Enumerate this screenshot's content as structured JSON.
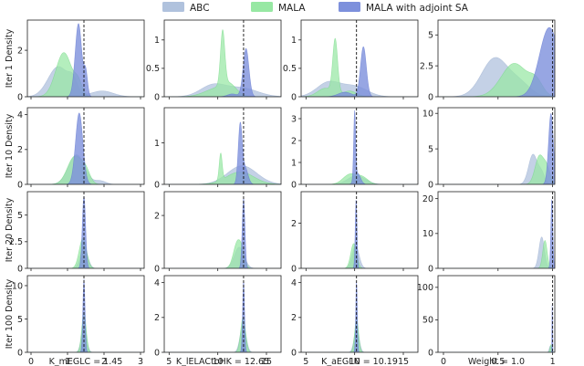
{
  "chart_data": {
    "type": "area",
    "description_scope": "grid of density plots",
    "legend": {
      "placement": "top-center",
      "entries": [
        {
          "name": "ABC",
          "color": "#b0c2dd"
        },
        {
          "name": "MALA",
          "color": "#97e8a3"
        },
        {
          "name": "MALA with adjoint SA",
          "color": "#7d90dc"
        }
      ]
    },
    "row_labels": [
      "Iter 1 Density",
      "Iter 10 Density",
      "Iter 20 Density",
      "Iter 100 Density"
    ],
    "columns": [
      {
        "xlabel": "K_mEGLC = 1.45",
        "true_value": 1.45,
        "xlim": [
          -0.1,
          3.1
        ],
        "xticks": [
          0,
          1,
          2,
          3
        ],
        "rows": [
          {
            "ylim": [
              0,
              3.3
            ],
            "yticks": [
              0,
              2
            ],
            "series": [
              {
                "name": "ABC",
                "peaks": [
                  [
                    0.75,
                    0.28,
                    1.3
                  ],
                  [
                    1.15,
                    0.12,
                    0.5
                  ],
                  [
                    1.95,
                    0.3,
                    0.25
                  ]
                ]
              },
              {
                "name": "MALA",
                "peaks": [
                  [
                    0.9,
                    0.22,
                    1.9
                  ],
                  [
                    1.3,
                    0.1,
                    0.5
                  ]
                ]
              },
              {
                "name": "MALA with adjoint SA",
                "peaks": [
                  [
                    1.3,
                    0.09,
                    3.15
                  ],
                  [
                    1.5,
                    0.05,
                    1.0
                  ]
                ]
              }
            ]
          },
          {
            "ylim": [
              0,
              4.4
            ],
            "yticks": [
              0,
              2,
              4
            ],
            "series": [
              {
                "name": "ABC",
                "peaks": [
                  [
                    1.25,
                    0.22,
                    1.7
                  ],
                  [
                    1.9,
                    0.15,
                    0.2
                  ]
                ]
              },
              {
                "name": "MALA",
                "peaks": [
                  [
                    1.2,
                    0.2,
                    1.6
                  ],
                  [
                    1.5,
                    0.12,
                    0.6
                  ]
                ]
              },
              {
                "name": "MALA with adjoint SA",
                "peaks": [
                  [
                    1.32,
                    0.1,
                    4.1
                  ]
                ]
              }
            ]
          },
          {
            "ylim": [
              0,
              7.2
            ],
            "yticks": [
              0,
              2.5,
              5.0
            ],
            "series": [
              {
                "name": "ABC",
                "peaks": [
                  [
                    1.45,
                    0.1,
                    2.0
                  ]
                ]
              },
              {
                "name": "MALA",
                "peaks": [
                  [
                    1.42,
                    0.1,
                    2.8
                  ]
                ]
              },
              {
                "name": "MALA with adjoint SA",
                "peaks": [
                  [
                    1.45,
                    0.045,
                    6.8
                  ]
                ]
              }
            ]
          },
          {
            "ylim": [
              0,
              11.5
            ],
            "yticks": [
              0,
              5,
              10
            ],
            "series": [
              {
                "name": "ABC",
                "peaks": [
                  [
                    1.45,
                    0.07,
                    4.0
                  ]
                ]
              },
              {
                "name": "MALA",
                "peaks": [
                  [
                    1.45,
                    0.06,
                    6.0
                  ]
                ]
              },
              {
                "name": "MALA with adjoint SA",
                "peaks": [
                  [
                    1.45,
                    0.03,
                    11.0
                  ]
                ]
              }
            ]
          }
        ]
      },
      {
        "xlabel": "K_lELACtoHK = 12.65",
        "true_value": 12.65,
        "xlim": [
          4.5,
          16.5
        ],
        "xticks": [
          5,
          10,
          15
        ],
        "rows": [
          {
            "ylim": [
              0,
              1.35
            ],
            "yticks": [
              0,
              0.5,
              1.0
            ],
            "series": [
              {
                "name": "ABC",
                "peaks": [
                  [
                    9.5,
                    1.3,
                    0.2
                  ],
                  [
                    12.5,
                    1.6,
                    0.15
                  ]
                ]
              },
              {
                "name": "MALA",
                "peaks": [
                  [
                    10.5,
                    0.22,
                    0.95
                  ],
                  [
                    10.0,
                    1.3,
                    0.15
                  ],
                  [
                    11.2,
                    0.7,
                    0.15
                  ]
                ]
              },
              {
                "name": "MALA with adjoint SA",
                "peaks": [
                  [
                    12.9,
                    0.3,
                    0.85
                  ],
                  [
                    11.5,
                    0.5,
                    0.05
                  ]
                ]
              }
            ]
          },
          {
            "ylim": [
              0,
              1.85
            ],
            "yticks": [
              0,
              1
            ],
            "series": [
              {
                "name": "ABC",
                "peaks": [
                  [
                    12.5,
                    1.5,
                    0.45
                  ]
                ]
              },
              {
                "name": "MALA",
                "peaks": [
                  [
                    10.3,
                    0.15,
                    0.65
                  ],
                  [
                    12.3,
                    1.4,
                    0.3
                  ]
                ]
              },
              {
                "name": "MALA with adjoint SA",
                "peaks": [
                  [
                    12.3,
                    0.2,
                    1.4
                  ],
                  [
                    12.8,
                    0.3,
                    0.4
                  ]
                ]
              }
            ]
          },
          {
            "ylim": [
              0,
              2.9
            ],
            "yticks": [
              0,
              2
            ],
            "series": [
              {
                "name": "ABC",
                "peaks": [
                  [
                    12.2,
                    0.5,
                    0.8
                  ]
                ]
              },
              {
                "name": "MALA",
                "peaks": [
                  [
                    12.0,
                    0.4,
                    0.95
                  ],
                  [
                    12.5,
                    0.3,
                    0.4
                  ]
                ]
              },
              {
                "name": "MALA with adjoint SA",
                "peaks": [
                  [
                    12.65,
                    0.14,
                    2.65
                  ]
                ]
              }
            ]
          },
          {
            "ylim": [
              0,
              4.4
            ],
            "yticks": [
              0,
              2,
              4
            ],
            "series": [
              {
                "name": "ABC",
                "peaks": [
                  [
                    12.6,
                    0.3,
                    1.6
                  ]
                ]
              },
              {
                "name": "MALA",
                "peaks": [
                  [
                    12.6,
                    0.25,
                    2.0
                  ]
                ]
              },
              {
                "name": "MALA with adjoint SA",
                "peaks": [
                  [
                    12.65,
                    0.1,
                    4.1
                  ]
                ]
              }
            ]
          }
        ]
      },
      {
        "xlabel": "K_aEGLN = 10.19",
        "true_value": 10.19,
        "xlim": [
          4.5,
          16.5
        ],
        "xticks": [
          5,
          10,
          15
        ],
        "rows": [
          {
            "ylim": [
              0,
              1.35
            ],
            "yticks": [
              0,
              0.5,
              1.0
            ],
            "series": [
              {
                "name": "ABC",
                "peaks": [
                  [
                    7.3,
                    1.2,
                    0.25
                  ],
                  [
                    10.0,
                    1.3,
                    0.18
                  ]
                ]
              },
              {
                "name": "MALA",
                "peaks": [
                  [
                    8.0,
                    0.25,
                    0.95
                  ],
                  [
                    7.0,
                    0.8,
                    0.15
                  ],
                  [
                    9.5,
                    0.7,
                    0.1
                  ]
                ]
              },
              {
                "name": "MALA with adjoint SA",
                "peaks": [
                  [
                    10.9,
                    0.3,
                    0.88
                  ],
                  [
                    9.0,
                    0.7,
                    0.08
                  ]
                ]
              }
            ]
          },
          {
            "ylim": [
              0,
              3.5
            ],
            "yticks": [
              0,
              1,
              2,
              3
            ],
            "series": [
              {
                "name": "ABC",
                "peaks": [
                  [
                    10.2,
                    0.9,
                    0.4
                  ]
                ]
              },
              {
                "name": "MALA",
                "peaks": [
                  [
                    9.5,
                    0.7,
                    0.45
                  ],
                  [
                    10.8,
                    0.6,
                    0.3
                  ]
                ]
              },
              {
                "name": "MALA with adjoint SA",
                "peaks": [
                  [
                    10.0,
                    0.1,
                    3.1
                  ],
                  [
                    10.3,
                    0.3,
                    0.5
                  ]
                ]
              }
            ]
          },
          {
            "ylim": [
              0,
              3.4
            ],
            "yticks": [
              0,
              2
            ],
            "series": [
              {
                "name": "ABC",
                "peaks": [
                  [
                    10.1,
                    0.35,
                    1.0
                  ]
                ]
              },
              {
                "name": "MALA",
                "peaks": [
                  [
                    9.9,
                    0.3,
                    1.1
                  ]
                ]
              },
              {
                "name": "MALA with adjoint SA",
                "peaks": [
                  [
                    10.15,
                    0.09,
                    3.1
                  ]
                ]
              }
            ]
          },
          {
            "ylim": [
              0,
              4.4
            ],
            "yticks": [
              0,
              2,
              4
            ],
            "series": [
              {
                "name": "ABC",
                "peaks": [
                  [
                    10.2,
                    0.25,
                    1.4
                  ]
                ]
              },
              {
                "name": "MALA",
                "peaks": [
                  [
                    10.2,
                    0.2,
                    1.9
                  ]
                ]
              },
              {
                "name": "MALA with adjoint SA",
                "peaks": [
                  [
                    10.19,
                    0.08,
                    4.1
                  ]
                ]
              }
            ]
          }
        ]
      },
      {
        "xlabel": "Weight = 1.0",
        "true_value": 1.0,
        "xlim": [
          -0.05,
          1.02
        ],
        "xticks": [
          0.0,
          0.5,
          1.0
        ],
        "rows": [
          {
            "ylim": [
              0,
              6.2
            ],
            "yticks": [
              0,
              2.5,
              5.0
            ],
            "series": [
              {
                "name": "ABC",
                "peaks": [
                  [
                    0.47,
                    0.12,
                    3.1
                  ],
                  [
                    0.7,
                    0.1,
                    1.0
                  ]
                ]
              },
              {
                "name": "MALA",
                "peaks": [
                  [
                    0.65,
                    0.12,
                    2.7
                  ],
                  [
                    0.85,
                    0.06,
                    1.0
                  ]
                ]
              },
              {
                "name": "MALA with adjoint SA",
                "peaks": [
                  [
                    0.97,
                    0.09,
                    5.6
                  ]
                ]
              }
            ]
          },
          {
            "ylim": [
              0,
              10.8
            ],
            "yticks": [
              0,
              5,
              10
            ],
            "series": [
              {
                "name": "ABC",
                "peaks": [
                  [
                    0.82,
                    0.04,
                    4.2
                  ],
                  [
                    0.9,
                    0.03,
                    1.5
                  ]
                ]
              },
              {
                "name": "MALA",
                "peaks": [
                  [
                    0.88,
                    0.04,
                    4.0
                  ],
                  [
                    0.95,
                    0.03,
                    2.0
                  ]
                ]
              },
              {
                "name": "MALA with adjoint SA",
                "peaks": [
                  [
                    0.985,
                    0.022,
                    10.0
                  ]
                ]
              }
            ]
          },
          {
            "ylim": [
              0,
              22
            ],
            "yticks": [
              0,
              10,
              20
            ],
            "series": [
              {
                "name": "ABC",
                "peaks": [
                  [
                    0.9,
                    0.025,
                    9.0
                  ]
                ]
              },
              {
                "name": "MALA",
                "peaks": [
                  [
                    0.93,
                    0.02,
                    8.0
                  ]
                ]
              },
              {
                "name": "MALA with adjoint SA",
                "peaks": [
                  [
                    0.993,
                    0.009,
                    20.0
                  ]
                ]
              }
            ]
          },
          {
            "ylim": [
              0,
              118
            ],
            "yticks": [
              0,
              50,
              100
            ],
            "series": [
              {
                "name": "ABC",
                "peaks": [
                  [
                    0.98,
                    0.01,
                    10.0
                  ]
                ]
              },
              {
                "name": "MALA",
                "peaks": [
                  [
                    0.985,
                    0.008,
                    12.0
                  ]
                ]
              },
              {
                "name": "MALA with adjoint SA",
                "peaks": [
                  [
                    0.997,
                    0.002,
                    105.0
                  ]
                ]
              }
            ]
          }
        ]
      }
    ],
    "grid": false
  }
}
